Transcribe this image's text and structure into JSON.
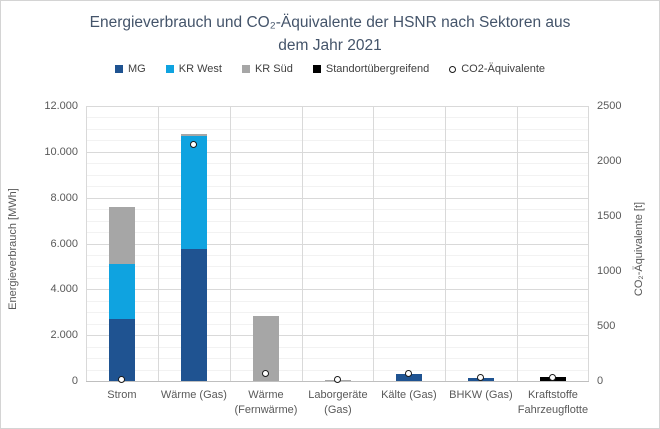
{
  "title": {
    "line1": "Energieverbrauch und CO₂-Äquivalente der HSNR nach Sektoren aus",
    "line2": "dem Jahr 2021"
  },
  "legend": {
    "items": [
      {
        "label": "MG",
        "color": "#1F5391",
        "marker": "square"
      },
      {
        "label": "KR West",
        "color": "#0FA3E0",
        "marker": "square"
      },
      {
        "label": "KR Süd",
        "color": "#A6A6A6",
        "marker": "square"
      },
      {
        "label": "Standortübergreifend",
        "color": "#000000",
        "marker": "square"
      },
      {
        "label": "CO2-Äquivalente",
        "color": "#FFFFFF",
        "marker": "open-circle"
      }
    ]
  },
  "chart_data": {
    "type": "bar",
    "stacked": true,
    "grid": true,
    "legend_position": "top",
    "categories": [
      "Strom",
      "Wärme (Gas)",
      "Wärme (Fernwärme)",
      "Laborgeräte (Gas)",
      "Kälte (Gas)",
      "BHKW (Gas)",
      "Kraftstoffe Fahrzeugflotte"
    ],
    "series": [
      {
        "name": "MG",
        "color": "#1F5391",
        "values": [
          2700,
          5750,
          0,
          0,
          300,
          150,
          0
        ]
      },
      {
        "name": "KR West",
        "color": "#0FA3E0",
        "values": [
          2400,
          4950,
          0,
          0,
          0,
          0,
          0
        ]
      },
      {
        "name": "KR Süd",
        "color": "#A6A6A6",
        "values": [
          2500,
          100,
          2850,
          30,
          0,
          0,
          0
        ]
      },
      {
        "name": "Standortübergreifend",
        "color": "#000000",
        "values": [
          0,
          0,
          0,
          0,
          0,
          0,
          175
        ]
      }
    ],
    "overlay_series": {
      "name": "CO2-Äquivalente",
      "axis": "right",
      "marker": "open-circle",
      "values": [
        10,
        2150,
        60,
        10,
        60,
        25,
        30
      ]
    },
    "left_axis": {
      "title": "Energieverbrauch [MWh]",
      "min": 0,
      "max": 12000,
      "major": 2000,
      "minor": 500,
      "ticks": [
        "0",
        "2.000",
        "4.000",
        "6.000",
        "8.000",
        "10.000",
        "12.000"
      ]
    },
    "right_axis": {
      "title": "CO₂-Äquivalente [t]",
      "min": 0,
      "max": 2500,
      "major": 500,
      "ticks": [
        "0",
        "500",
        "1000",
        "1500",
        "2000",
        "2500"
      ]
    },
    "colors": {
      "grid_major": "#D9D9D9",
      "grid_minor": "#F2F2F2",
      "axis_line": "#BFBFBF",
      "text": "#595959",
      "title": "#44546A"
    }
  }
}
